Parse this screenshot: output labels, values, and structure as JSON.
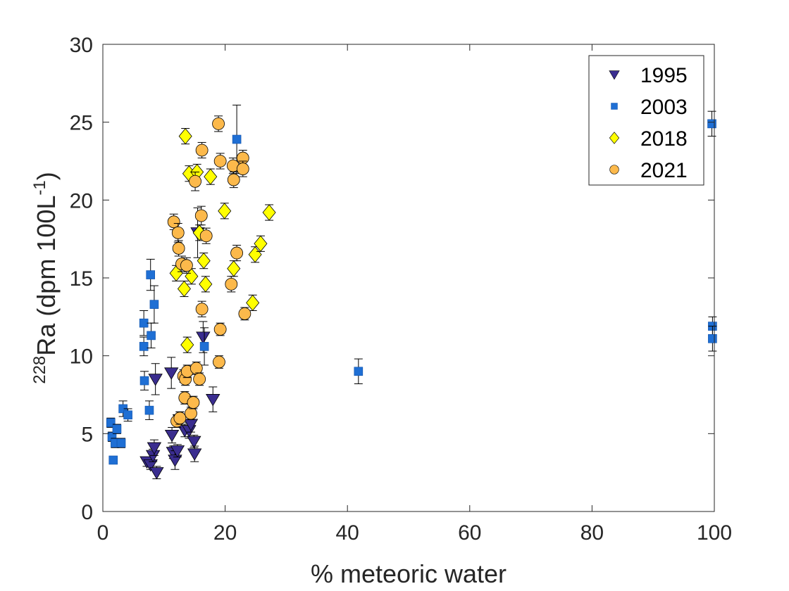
{
  "chart_data": {
    "type": "scatter",
    "xlabel": "% meteoric water",
    "ylabel": {
      "superscript": "228",
      "main": "Ra (dpm 100L",
      "unit_exponent": "-1",
      "close": ")"
    },
    "xlim": [
      0,
      100
    ],
    "ylim": [
      0,
      30
    ],
    "x_ticks": [
      0,
      20,
      40,
      60,
      80,
      100
    ],
    "y_ticks": [
      0,
      5,
      10,
      15,
      20,
      25,
      30
    ],
    "x_tick_labels": [
      "0",
      "20",
      "40",
      "60",
      "80",
      "100"
    ],
    "y_tick_labels": [
      "0",
      "5",
      "10",
      "15",
      "20",
      "25",
      "30"
    ],
    "grid": false,
    "legend_position": "top-right",
    "series": [
      {
        "name": "1995",
        "marker": "triangle-down",
        "color": "#3a2d8f",
        "points": [
          {
            "x": 7.2,
            "y": 3.2,
            "err": 0.3
          },
          {
            "x": 7.8,
            "y": 3.0,
            "err": 0.3
          },
          {
            "x": 8.2,
            "y": 3.6,
            "err": 0.4
          },
          {
            "x": 8.4,
            "y": 4.1,
            "err": 0.5
          },
          {
            "x": 8.6,
            "y": 8.5,
            "err": 1.0
          },
          {
            "x": 8.8,
            "y": 2.5,
            "err": 0.4
          },
          {
            "x": 11.2,
            "y": 8.9,
            "err": 1.0
          },
          {
            "x": 11.3,
            "y": 4.9,
            "err": 0.5
          },
          {
            "x": 11.5,
            "y": 3.8,
            "err": 0.4
          },
          {
            "x": 11.8,
            "y": 3.3,
            "err": 0.6
          },
          {
            "x": 12.2,
            "y": 3.9,
            "err": 0.4
          },
          {
            "x": 12.6,
            "y": 5.9,
            "err": 0.5
          },
          {
            "x": 13.4,
            "y": 5.2,
            "err": 0.4
          },
          {
            "x": 14.1,
            "y": 5.2,
            "err": 0.5
          },
          {
            "x": 14.4,
            "y": 5.6,
            "err": 0.5
          },
          {
            "x": 14.9,
            "y": 4.5,
            "err": 0.4
          },
          {
            "x": 15.0,
            "y": 3.7,
            "err": 0.5
          },
          {
            "x": 15.5,
            "y": 17.9,
            "err": 1.6
          },
          {
            "x": 16.4,
            "y": 11.2,
            "err": 1.0
          },
          {
            "x": 18.0,
            "y": 7.2,
            "err": 0.8
          }
        ]
      },
      {
        "name": "2003",
        "marker": "square",
        "color": "#1f6fd4",
        "points": [
          {
            "x": 1.3,
            "y": 5.7,
            "err": 0.3
          },
          {
            "x": 1.5,
            "y": 4.8,
            "err": 0.3
          },
          {
            "x": 1.7,
            "y": 3.3,
            "err": 0.2
          },
          {
            "x": 2.0,
            "y": 4.4,
            "err": 0.3
          },
          {
            "x": 2.3,
            "y": 5.3,
            "err": 0.3
          },
          {
            "x": 3.0,
            "y": 4.4,
            "err": 0.3
          },
          {
            "x": 3.3,
            "y": 6.6,
            "err": 0.5
          },
          {
            "x": 4.1,
            "y": 6.2,
            "err": 0.4
          },
          {
            "x": 6.7,
            "y": 12.1,
            "err": 0.8
          },
          {
            "x": 6.7,
            "y": 10.6,
            "err": 0.6
          },
          {
            "x": 6.8,
            "y": 8.4,
            "err": 0.6
          },
          {
            "x": 7.6,
            "y": 6.5,
            "err": 0.6
          },
          {
            "x": 7.8,
            "y": 15.2,
            "err": 1.0
          },
          {
            "x": 7.9,
            "y": 11.3,
            "err": 0.8
          },
          {
            "x": 8.4,
            "y": 13.3,
            "err": 1.2
          },
          {
            "x": 16.6,
            "y": 10.6,
            "err": 1.2
          },
          {
            "x": 21.9,
            "y": 23.9,
            "err": 2.2
          },
          {
            "x": 41.8,
            "y": 9.0,
            "err": 0.8
          },
          {
            "x": 99.6,
            "y": 24.9,
            "err": 0.8
          },
          {
            "x": 99.7,
            "y": 11.9,
            "err": 0.6
          },
          {
            "x": 99.7,
            "y": 11.1,
            "err": 0.8
          }
        ]
      },
      {
        "name": "2018",
        "marker": "diamond",
        "color": "#ffff00",
        "points": [
          {
            "x": 12.0,
            "y": 15.3,
            "err": 0.5
          },
          {
            "x": 13.3,
            "y": 14.3,
            "err": 0.5
          },
          {
            "x": 13.5,
            "y": 24.1,
            "err": 0.5
          },
          {
            "x": 13.8,
            "y": 10.7,
            "err": 0.5
          },
          {
            "x": 14.1,
            "y": 21.7,
            "err": 0.5
          },
          {
            "x": 14.5,
            "y": 15.1,
            "err": 0.5
          },
          {
            "x": 15.4,
            "y": 21.8,
            "err": 0.5
          },
          {
            "x": 15.8,
            "y": 17.9,
            "err": 0.5
          },
          {
            "x": 16.5,
            "y": 16.1,
            "err": 0.5
          },
          {
            "x": 16.8,
            "y": 14.6,
            "err": 0.5
          },
          {
            "x": 17.6,
            "y": 21.5,
            "err": 0.5
          },
          {
            "x": 19.9,
            "y": 19.3,
            "err": 0.5
          },
          {
            "x": 21.4,
            "y": 15.6,
            "err": 0.5
          },
          {
            "x": 24.5,
            "y": 13.4,
            "err": 0.5
          },
          {
            "x": 24.9,
            "y": 16.5,
            "err": 0.5
          },
          {
            "x": 25.8,
            "y": 17.2,
            "err": 0.5
          },
          {
            "x": 27.2,
            "y": 19.2,
            "err": 0.5
          }
        ]
      },
      {
        "name": "2021",
        "marker": "circle",
        "color": "#fcb94b",
        "points": [
          {
            "x": 11.6,
            "y": 18.6,
            "err": 0.5
          },
          {
            "x": 12.1,
            "y": 5.8,
            "err": 0.4
          },
          {
            "x": 12.3,
            "y": 17.9,
            "err": 0.6
          },
          {
            "x": 12.4,
            "y": 16.9,
            "err": 0.5
          },
          {
            "x": 12.6,
            "y": 6.0,
            "err": 0.4
          },
          {
            "x": 12.9,
            "y": 15.9,
            "err": 0.5
          },
          {
            "x": 13.2,
            "y": 8.7,
            "err": 0.4
          },
          {
            "x": 13.4,
            "y": 7.3,
            "err": 0.4
          },
          {
            "x": 13.5,
            "y": 8.5,
            "err": 0.4
          },
          {
            "x": 13.7,
            "y": 15.8,
            "err": 0.5
          },
          {
            "x": 13.8,
            "y": 9.0,
            "err": 0.4
          },
          {
            "x": 14.4,
            "y": 6.3,
            "err": 0.4
          },
          {
            "x": 14.8,
            "y": 7.0,
            "err": 0.4
          },
          {
            "x": 15.1,
            "y": 21.2,
            "err": 0.6
          },
          {
            "x": 15.3,
            "y": 9.2,
            "err": 0.4
          },
          {
            "x": 15.8,
            "y": 8.5,
            "err": 0.4
          },
          {
            "x": 16.1,
            "y": 19.0,
            "err": 0.6
          },
          {
            "x": 16.2,
            "y": 23.2,
            "err": 0.5
          },
          {
            "x": 16.2,
            "y": 13.0,
            "err": 0.5
          },
          {
            "x": 16.9,
            "y": 17.7,
            "err": 0.5
          },
          {
            "x": 18.9,
            "y": 24.9,
            "err": 0.5
          },
          {
            "x": 19.0,
            "y": 9.6,
            "err": 0.4
          },
          {
            "x": 19.2,
            "y": 11.7,
            "err": 0.4
          },
          {
            "x": 19.2,
            "y": 22.5,
            "err": 0.5
          },
          {
            "x": 21.0,
            "y": 14.6,
            "err": 0.5
          },
          {
            "x": 21.3,
            "y": 22.2,
            "err": 0.5
          },
          {
            "x": 21.4,
            "y": 21.3,
            "err": 0.5
          },
          {
            "x": 21.9,
            "y": 16.6,
            "err": 0.5
          },
          {
            "x": 22.9,
            "y": 22.7,
            "err": 0.5
          },
          {
            "x": 22.9,
            "y": 22.0,
            "err": 0.5
          },
          {
            "x": 23.2,
            "y": 12.7,
            "err": 0.4
          }
        ]
      }
    ]
  }
}
